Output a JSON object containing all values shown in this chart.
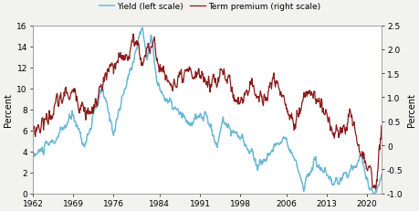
{
  "legend_yield": "Yield (left scale)",
  "legend_tp": "Term premium (right scale)",
  "ylabel_left": "Percent",
  "ylabel_right": "Percent",
  "color_yield": "#6bb8d4",
  "color_tp": "#8b1a1a",
  "left_ylim": [
    0,
    16
  ],
  "right_ylim": [
    -1.0,
    2.5
  ],
  "left_yticks": [
    0,
    2,
    4,
    6,
    8,
    10,
    12,
    14,
    16
  ],
  "right_yticks": [
    -1.0,
    -0.5,
    0.0,
    0.5,
    1.0,
    1.5,
    2.0,
    2.5
  ],
  "xticks": [
    1962,
    1969,
    1976,
    1984,
    1991,
    1998,
    2006,
    2013,
    2020
  ],
  "xlim": [
    1962,
    2022.5
  ],
  "bg_color": "#f2f2ee",
  "plot_bg": "#ffffff",
  "linewidth_yield": 1.1,
  "linewidth_tp": 0.9
}
